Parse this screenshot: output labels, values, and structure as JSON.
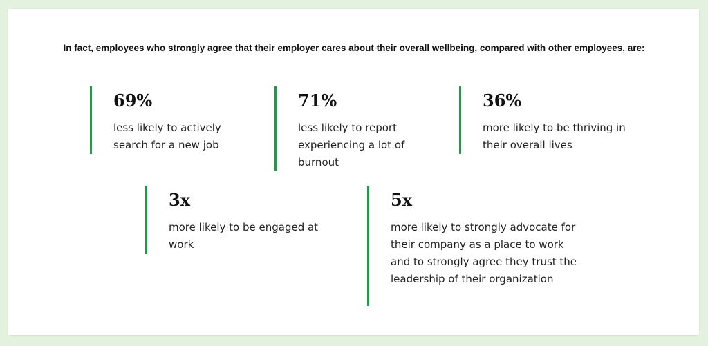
{
  "intro": "In fact, employees who strongly agree that their employer cares about their overall wellbeing, compared with other employees, are:",
  "stats": [
    {
      "value": "69%",
      "description": "less likely to actively search for a new job"
    },
    {
      "value": "71%",
      "description": "less likely to report experiencing a lot of burnout"
    },
    {
      "value": "36%",
      "description": "more likely to be thriving in their overall lives"
    },
    {
      "value": "3x",
      "description": "more likely to be engaged at work"
    },
    {
      "value": "5x",
      "description": "more likely to strongly advocate for their company as a place to work and to strongly agree they trust the leadership of their organization"
    }
  ],
  "colors": {
    "accent": "#1e9a48",
    "background": "#e3f2df",
    "card": "#ffffff"
  }
}
